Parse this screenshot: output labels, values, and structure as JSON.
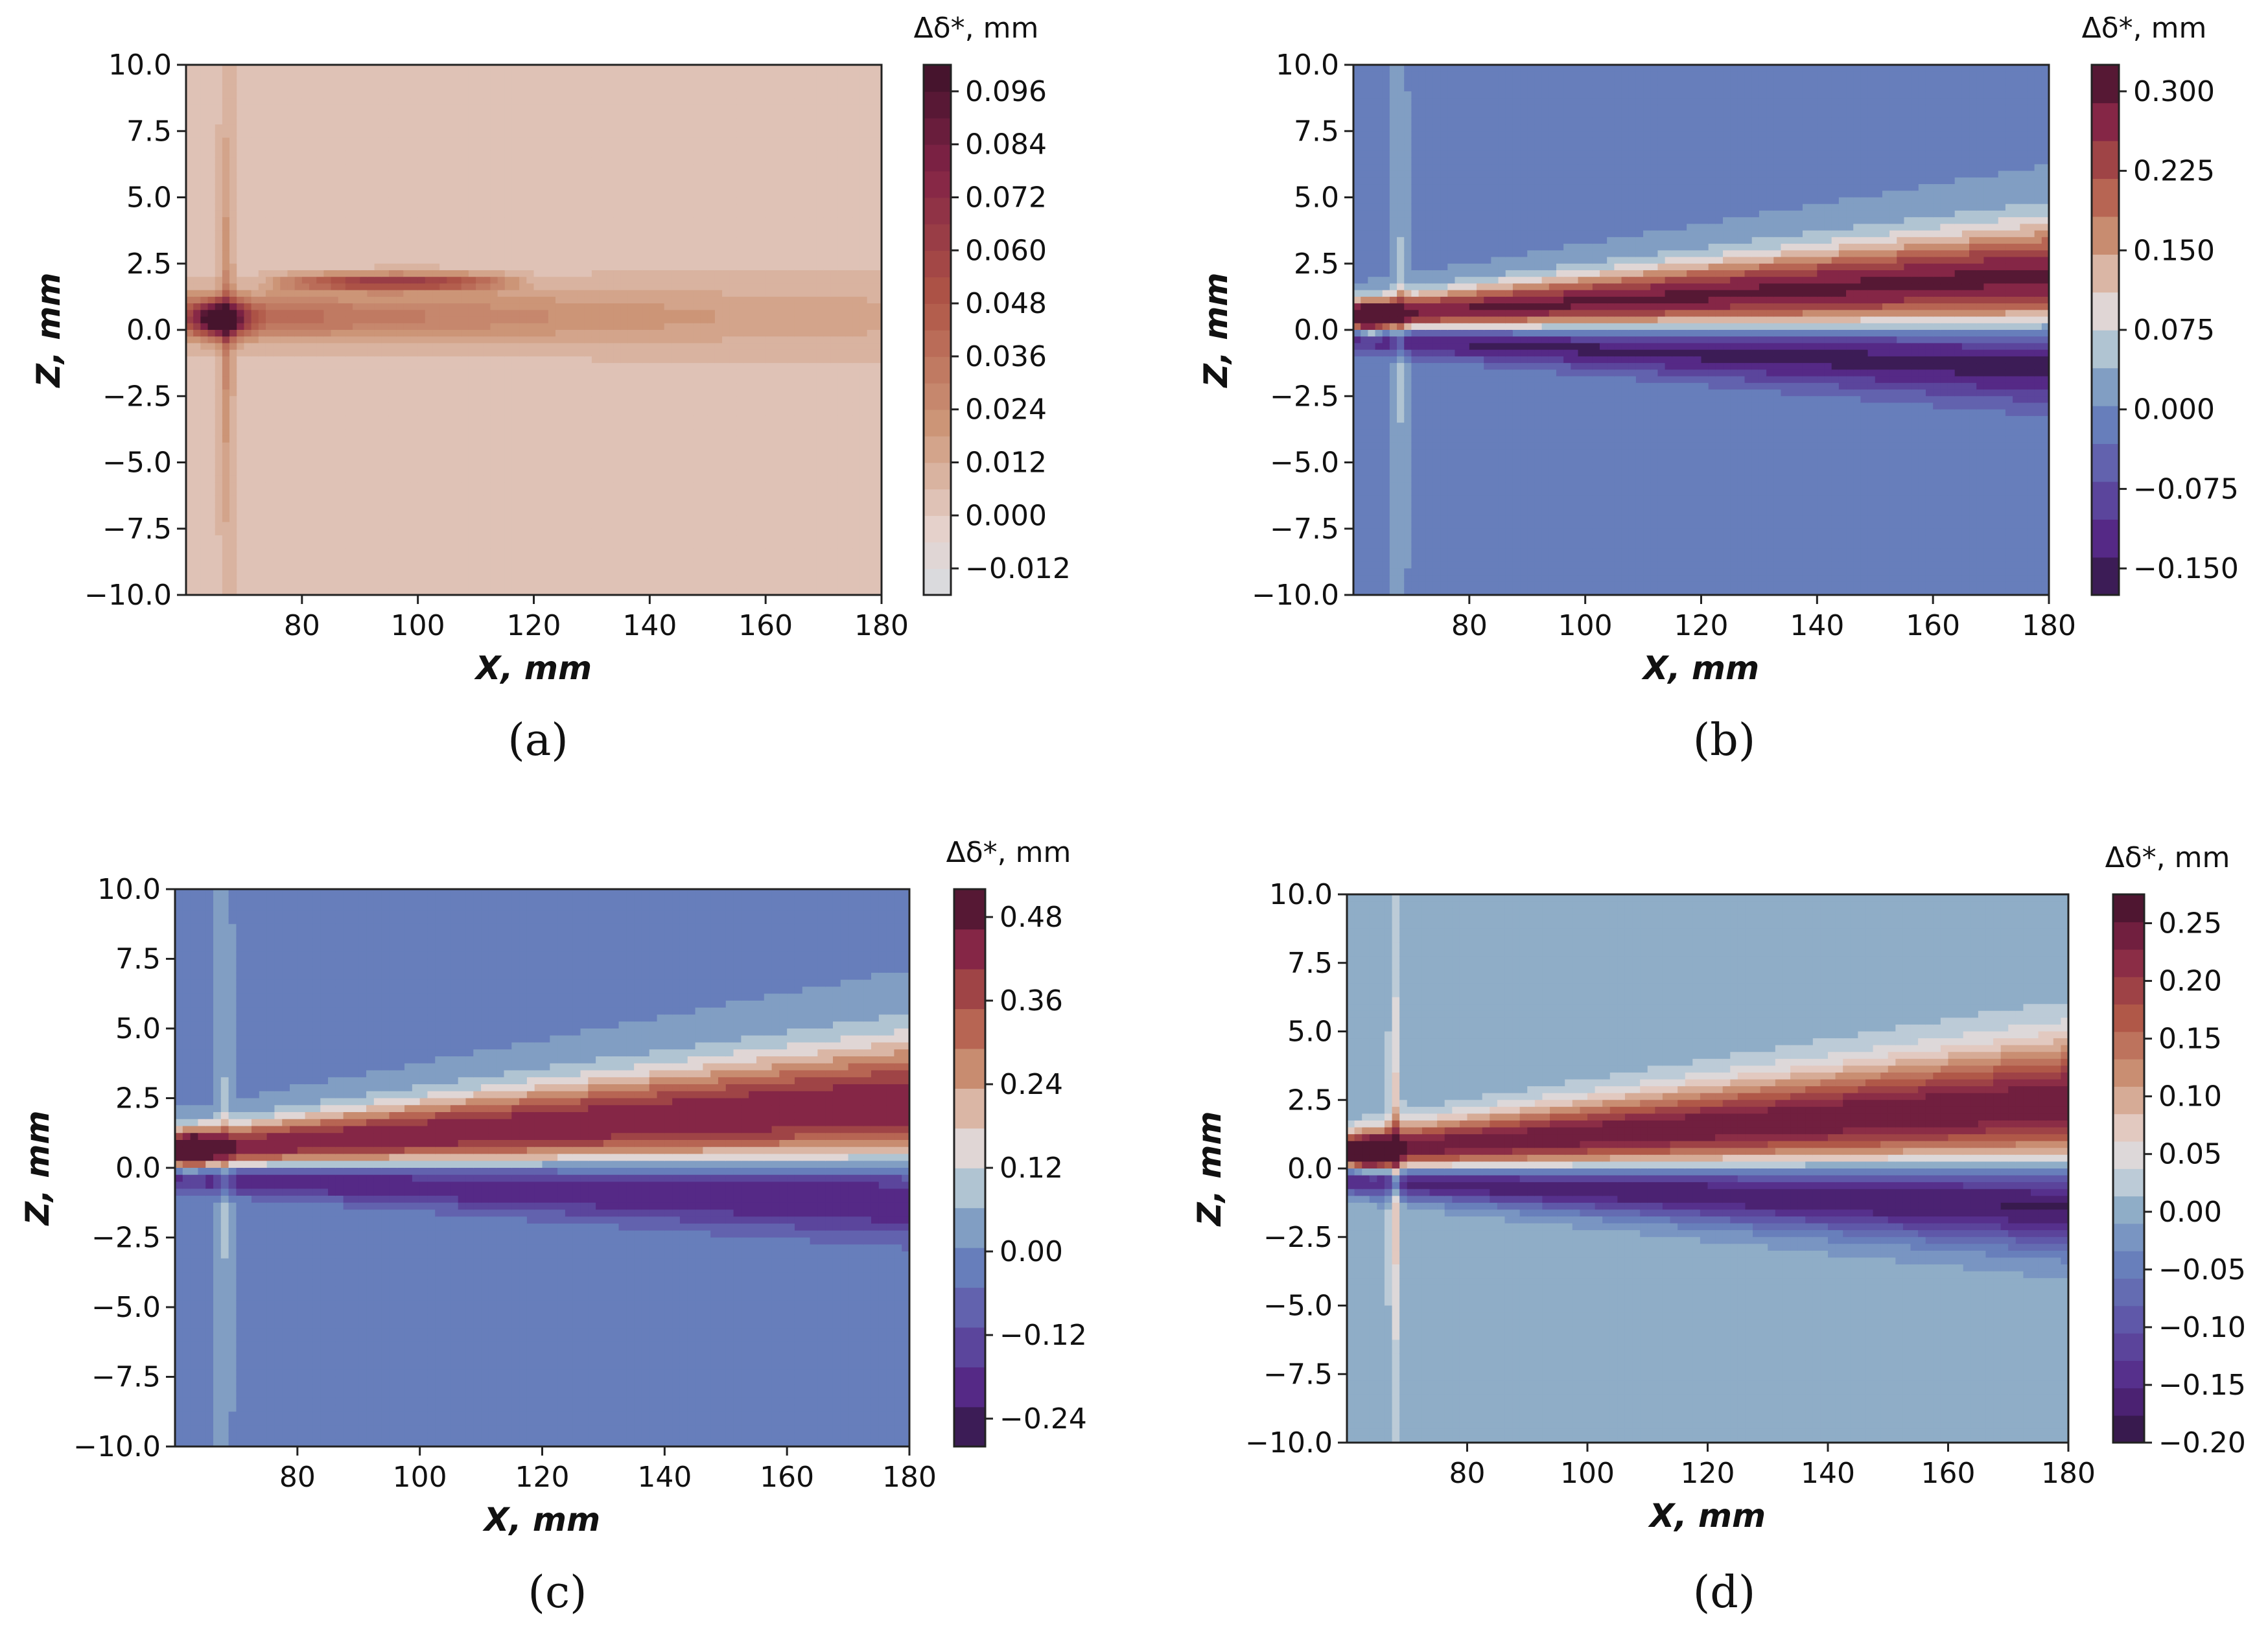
{
  "figure": {
    "panels": [
      "a",
      "b",
      "c",
      "d"
    ]
  },
  "chart_data": [
    {
      "type": "heatmap",
      "panel_label": "(a)",
      "xlabel": "X, mm",
      "ylabel": "Z, mm",
      "xlim": [
        60,
        180
      ],
      "ylim": [
        -10,
        10
      ],
      "x_ticks": [
        80,
        100,
        120,
        140,
        160,
        180
      ],
      "x_tick_labels": [
        "80",
        "100",
        "120",
        "140",
        "160",
        "180"
      ],
      "y_ticks": [
        10,
        7.5,
        5,
        2.5,
        0,
        -2.5,
        -5,
        -7.5,
        -10
      ],
      "y_tick_labels": [
        "10.0",
        "7.5",
        "5.0",
        "2.5",
        "0.0",
        "−2.5",
        "−5.0",
        "−7.5",
        "−10.0"
      ],
      "colorbar": {
        "title": "Δδ*, mm",
        "vmin": -0.018,
        "vmax": 0.102,
        "ticks": [
          0.096,
          0.084,
          0.072,
          0.06,
          0.048,
          0.036,
          0.024,
          0.012,
          0.0,
          -0.012
        ],
        "tick_labels": [
          "0.096",
          "0.084",
          "0.072",
          "0.060",
          "0.048",
          "0.036",
          "0.024",
          "0.012",
          "0.000",
          "−0.012"
        ],
        "colormap": "twilight_shifted",
        "range_fraction": [
          0.5,
          1.0
        ]
      },
      "field": {
        "background": 0.004,
        "upper_band": {
          "amplitude": 0.044,
          "center_start": 0.5,
          "center_end": 0.5,
          "width_start": 0.8,
          "width_end": 1.3,
          "decay_x": 80
        },
        "lower_band": {
          "amplitude": 0.0,
          "center_start": 0,
          "center_end": 0,
          "width_start": 1,
          "width_end": 1
        },
        "nose": {
          "amplitude": 0.09,
          "x": 66,
          "z": 0.4,
          "sx": 4,
          "sz": 0.6
        },
        "plume": {
          "amplitude": 0.03,
          "x": 67,
          "sx": 1.2,
          "z_scale": 5.5
        },
        "extra_band": {
          "amplitude": 0.06,
          "z": 1.8,
          "sz": 0.3,
          "x_start": 72,
          "x_end": 120
        }
      }
    },
    {
      "type": "heatmap",
      "panel_label": "(b)",
      "xlabel": "X, mm",
      "ylabel": "Z, mm",
      "xlim": [
        60,
        180
      ],
      "ylim": [
        -10,
        10
      ],
      "x_ticks": [
        80,
        100,
        120,
        140,
        160,
        180
      ],
      "x_tick_labels": [
        "80",
        "100",
        "120",
        "140",
        "160",
        "180"
      ],
      "y_ticks": [
        10,
        7.5,
        5,
        2.5,
        0,
        -2.5,
        -5,
        -7.5,
        -10
      ],
      "y_tick_labels": [
        "10.0",
        "7.5",
        "5.0",
        "2.5",
        "0.0",
        "−2.5",
        "−5.0",
        "−7.5",
        "−10.0"
      ],
      "colorbar": {
        "title": "Δδ*, mm",
        "vmin": -0.175,
        "vmax": 0.325,
        "ticks": [
          0.3,
          0.225,
          0.15,
          0.075,
          0.0,
          -0.075,
          -0.15
        ],
        "tick_labels": [
          "0.300",
          "0.225",
          "0.150",
          "0.075",
          "0.000",
          "−0.075",
          "−0.150"
        ],
        "colormap": "twilight_shifted",
        "range_fraction": [
          0.0,
          1.0
        ]
      },
      "field": {
        "background": 0.0,
        "upper_band": {
          "amplitude": 0.3,
          "center_start": 0.5,
          "center_end": 2.0,
          "width_start": 0.6,
          "width_end": 2.0,
          "decay_x": 0
        },
        "lower_band": {
          "amplitude": -0.17,
          "center_start": -0.3,
          "center_end": -1.2,
          "width_start": 0.5,
          "width_end": 1.6
        },
        "nose": {
          "amplitude": 0.2,
          "x": 63,
          "z": 0.4,
          "sx": 3,
          "sz": 0.6
        },
        "plume": {
          "amplitude": 0.08,
          "x": 68,
          "sx": 1.2,
          "z_scale": 5.0
        },
        "extra_band": {
          "amplitude": 0,
          "z": 0,
          "sz": 1,
          "x_start": 60,
          "x_end": 60
        }
      }
    },
    {
      "type": "heatmap",
      "panel_label": "(c)",
      "xlabel": "X, mm",
      "ylabel": "Z, mm",
      "xlim": [
        60,
        180
      ],
      "ylim": [
        -10,
        10
      ],
      "x_ticks": [
        80,
        100,
        120,
        140,
        160,
        180
      ],
      "x_tick_labels": [
        "80",
        "100",
        "120",
        "140",
        "160",
        "180"
      ],
      "y_ticks": [
        10,
        7.5,
        5,
        2.5,
        0,
        -2.5,
        -5,
        -7.5,
        -10
      ],
      "y_tick_labels": [
        "10.0",
        "7.5",
        "5.0",
        "2.5",
        "0.0",
        "−2.5",
        "−5.0",
        "−7.5",
        "−10.0"
      ],
      "colorbar": {
        "title": "Δδ*, mm",
        "vmin": -0.28,
        "vmax": 0.52,
        "ticks": [
          0.48,
          0.36,
          0.24,
          0.12,
          0.0,
          -0.12,
          -0.24
        ],
        "tick_labels": [
          "0.48",
          "0.36",
          "0.24",
          "0.12",
          "0.00",
          "−0.12",
          "−0.24"
        ],
        "colormap": "twilight_shifted",
        "range_fraction": [
          0.0,
          1.0
        ]
      },
      "field": {
        "background": 0.0,
        "upper_band": {
          "amplitude": 0.46,
          "center_start": 0.6,
          "center_end": 2.3,
          "width_start": 0.7,
          "width_end": 2.3,
          "decay_x": 0
        },
        "lower_band": {
          "amplitude": -0.27,
          "center_start": -0.3,
          "center_end": -1.0,
          "width_start": 0.5,
          "width_end": 1.5
        },
        "nose": {
          "amplitude": 0.3,
          "x": 63,
          "z": 0.6,
          "sx": 3,
          "sz": 0.7
        },
        "plume": {
          "amplitude": 0.12,
          "x": 68,
          "sx": 1.2,
          "z_scale": 5.0
        },
        "extra_band": {
          "amplitude": 0,
          "z": 0,
          "sz": 1,
          "x_start": 60,
          "x_end": 60
        }
      }
    },
    {
      "type": "heatmap",
      "panel_label": "(d)",
      "xlabel": "X, mm",
      "ylabel": "Z, mm",
      "xlim": [
        60,
        180
      ],
      "ylim": [
        -10,
        10
      ],
      "x_ticks": [
        80,
        100,
        120,
        140,
        160,
        180
      ],
      "x_tick_labels": [
        "80",
        "100",
        "120",
        "140",
        "160",
        "180"
      ],
      "y_ticks": [
        10,
        7.5,
        5,
        2.5,
        0,
        -2.5,
        -5,
        -7.5,
        -10
      ],
      "y_tick_labels": [
        "10.0",
        "7.5",
        "5.0",
        "2.5",
        "0.0",
        "−2.5",
        "−5.0",
        "−7.5",
        "−10.0"
      ],
      "colorbar": {
        "title": "Δδ*, mm",
        "vmin": -0.2,
        "vmax": 0.275,
        "ticks": [
          0.25,
          0.2,
          0.15,
          0.1,
          0.05,
          0.0,
          -0.05,
          -0.1,
          -0.15,
          -0.2
        ],
        "tick_labels": [
          "0.25",
          "0.20",
          "0.15",
          "0.10",
          "0.05",
          "0.00",
          "−0.05",
          "−0.10",
          "−0.15",
          "−0.20"
        ],
        "colormap": "twilight_shifted",
        "range_fraction": [
          0.0,
          1.0
        ]
      },
      "field": {
        "background": 0.0,
        "upper_band": {
          "amplitude": 0.25,
          "center_start": 0.6,
          "center_end": 2.4,
          "width_start": 0.7,
          "width_end": 2.2,
          "decay_x": 0
        },
        "lower_band": {
          "amplitude": -0.19,
          "center_start": -0.4,
          "center_end": -1.3,
          "width_start": 0.5,
          "width_end": 1.6
        },
        "nose": {
          "amplitude": 0.2,
          "x": 64,
          "z": 0.5,
          "sx": 3,
          "sz": 0.6
        },
        "plume": {
          "amplitude": 0.12,
          "x": 68,
          "sx": 1.0,
          "z_scale": 5.5
        },
        "extra_band": {
          "amplitude": 0,
          "z": 0,
          "sz": 1,
          "x_start": 60,
          "x_end": 60
        }
      }
    }
  ]
}
